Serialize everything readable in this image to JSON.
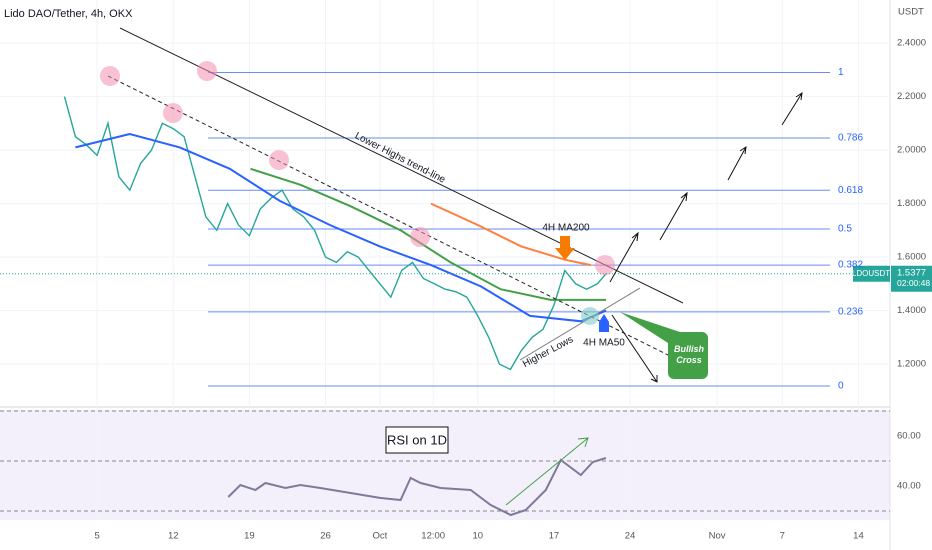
{
  "chart_data": [
    {
      "type": "line",
      "title": "Lido DAO/Tether, 4h, OKX",
      "y_unit": "USDT",
      "xlim": [
        -3.93,
        77.9
      ],
      "ylim": [
        1.047,
        2.561
      ],
      "xticks": [
        5,
        12,
        19,
        26,
        {
          "value": 31,
          "label": "Oct"
        },
        {
          "value": 35.9,
          "label": "12:00"
        },
        {
          "value": 40,
          "label": "10"
        },
        {
          "value": 47,
          "label": "17"
        },
        {
          "value": 54,
          "label": "24"
        },
        {
          "value": 62,
          "label": "Nov"
        },
        {
          "value": 68,
          "label": "7"
        },
        {
          "value": 75,
          "label": "14"
        }
      ],
      "yticks": [
        {
          "value": 2.4,
          "label": "2.4000"
        },
        {
          "value": 2.2,
          "label": "2.2000"
        },
        {
          "value": 2.0,
          "label": "2.0000"
        },
        {
          "value": 1.8,
          "label": "1.8000"
        },
        {
          "value": 1.6,
          "label": "1.6000"
        },
        {
          "value": 1.4,
          "label": "1.4000"
        },
        {
          "value": 1.2,
          "label": "1.2000"
        }
      ],
      "grid": true,
      "series": [
        {
          "color": "#26a69a",
          "x": [
            2,
            3,
            4,
            5,
            6,
            7,
            8,
            9,
            10,
            11,
            12,
            13,
            14,
            15,
            16,
            17,
            18,
            19,
            20,
            21,
            22,
            23,
            24,
            25,
            26,
            27,
            28,
            29,
            30,
            31,
            32,
            33,
            34,
            35,
            36,
            37,
            38,
            39,
            40,
            41,
            42,
            43,
            44,
            45,
            46,
            47,
            48,
            49,
            50,
            51,
            51.8
          ],
          "values": [
            2.2,
            2.05,
            2.02,
            1.98,
            2.1,
            1.9,
            1.85,
            1.95,
            2.0,
            2.1,
            2.08,
            2.05,
            1.9,
            1.75,
            1.7,
            1.8,
            1.72,
            1.68,
            1.78,
            1.82,
            1.85,
            1.78,
            1.75,
            1.7,
            1.6,
            1.58,
            1.62,
            1.6,
            1.55,
            1.5,
            1.45,
            1.55,
            1.58,
            1.52,
            1.5,
            1.48,
            1.47,
            1.45,
            1.38,
            1.3,
            1.2,
            1.18,
            1.25,
            1.3,
            1.33,
            1.42,
            1.55,
            1.5,
            1.48,
            1.5,
            1.5377
          ]
        },
        {
          "color": "#ff7f3f",
          "x": [
            35.7,
            40,
            44,
            48,
            50.4
          ],
          "values": [
            1.8,
            1.72,
            1.64,
            1.59,
            1.57
          ]
        },
        {
          "color": "#43a047",
          "x": [
            19.1,
            23.7,
            28.3,
            32.9,
            37.5,
            42.1,
            46.7,
            51.8
          ],
          "values": [
            1.93,
            1.87,
            1.79,
            1.7,
            1.58,
            1.48,
            1.44,
            1.44
          ]
        },
        {
          "color": "#2962ff",
          "x": [
            3,
            8,
            12.6,
            17.2,
            21.8,
            26.4,
            31,
            35.7,
            40.3,
            44.8,
            49.5,
            51.8
          ],
          "values": [
            2.01,
            2.06,
            2.01,
            1.93,
            1.81,
            1.72,
            1.64,
            1.57,
            1.49,
            1.38,
            1.36,
            1.4
          ]
        }
      ],
      "fib_levels": [
        {
          "ratio": 1,
          "value": 2.29
        },
        {
          "ratio": 0.786,
          "value": 2.045
        },
        {
          "ratio": 0.618,
          "value": 1.85
        },
        {
          "ratio": 0.5,
          "value": 1.705
        },
        {
          "ratio": 0.382,
          "value": 1.57
        },
        {
          "ratio": 0.236,
          "value": 1.395
        },
        {
          "ratio": 0,
          "value": 1.118
        }
      ],
      "last_price": {
        "symbol": "LDOUSDT",
        "value": 1.5377,
        "countdown": "02:00:48"
      },
      "annotations": [
        "Lower Highs trend-line",
        "4H MA200",
        "4H MA50",
        "Higher Lows",
        "Bullish Cross"
      ]
    },
    {
      "type": "line",
      "title": "RSI on 1D",
      "ylim": [
        26.4,
        70.4
      ],
      "yticks": [
        {
          "value": 60,
          "label": "60.00"
        },
        {
          "value": 40,
          "label": "40.00"
        }
      ],
      "levels": [
        70,
        50,
        30
      ],
      "series": [
        {
          "color": "#7e7a9a",
          "x": [
            17.06,
            18.17,
            19.55,
            20.47,
            22.31,
            23.69,
            25.53,
            28.3,
            31.06,
            32.9,
            33.82,
            34.74,
            36.58,
            39.35,
            41.19,
            43.03,
            44.41,
            46.25,
            47.63,
            49.47,
            50.58,
            51.78
          ],
          "values": [
            35.6,
            40.4,
            38.4,
            41.2,
            39.2,
            40.4,
            39.2,
            37.2,
            35.2,
            34.4,
            43.2,
            41.2,
            39.2,
            38.4,
            32.4,
            28.4,
            30.4,
            38.4,
            50.4,
            44.4,
            49.6,
            51.2
          ]
        }
      ]
    }
  ]
}
